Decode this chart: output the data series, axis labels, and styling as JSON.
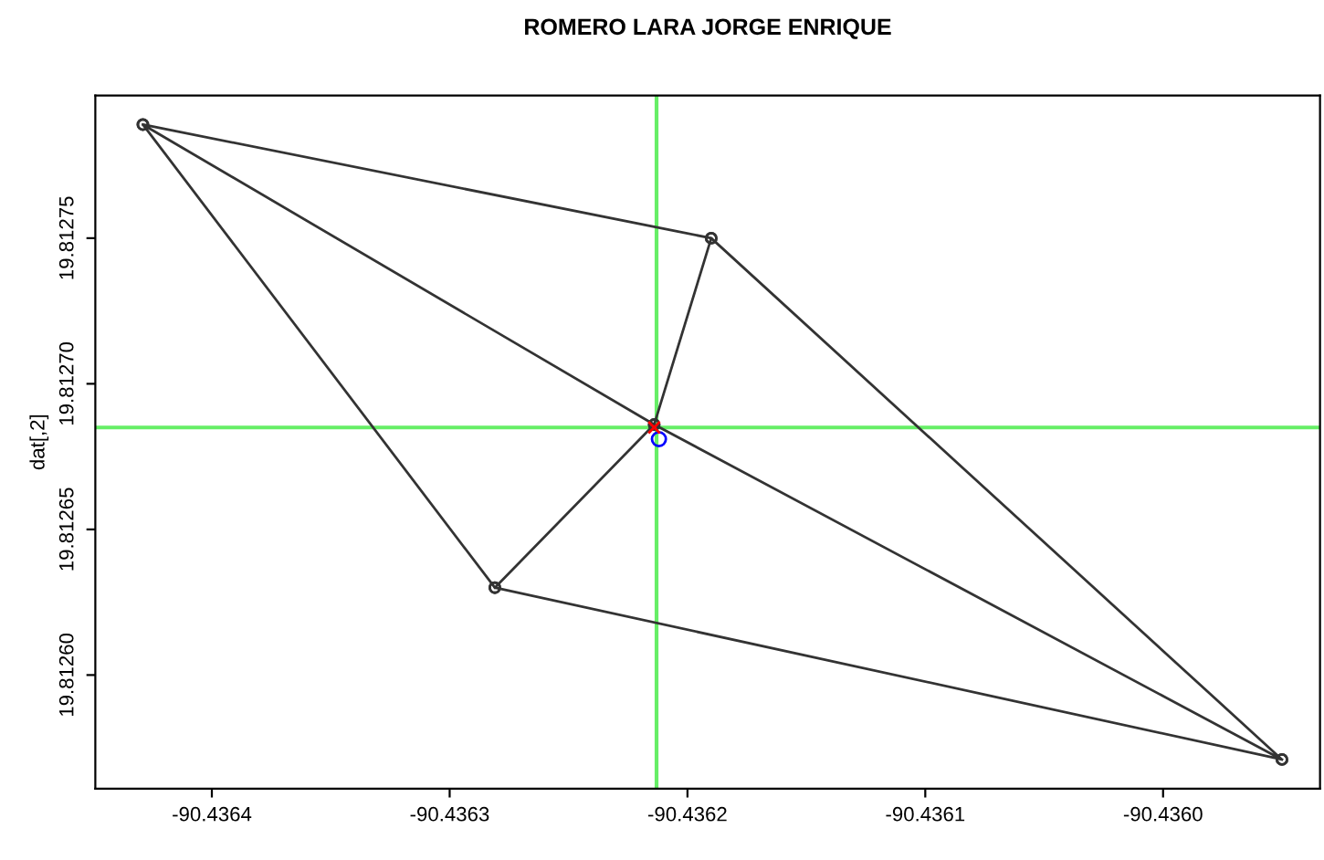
{
  "chart_data": {
    "type": "line",
    "title": "ROMERO LARA JORGE ENRIQUE",
    "ylabel": "dat[,2]",
    "series": [
      {
        "color": "#333333",
        "marker": "circle",
        "x": [
          -90.436429,
          -90.43619,
          -90.43595,
          -90.436281,
          -90.436429,
          -90.436214,
          -90.43595,
          null,
          -90.43619,
          -90.436214,
          -90.436281
        ],
        "values": [
          19.812789,
          19.81275,
          19.812571,
          19.81263,
          19.812789,
          19.812686,
          19.812571,
          null,
          19.81275,
          19.812686,
          19.81263
        ]
      },
      {
        "type": "scatter",
        "color": "#0000ff",
        "marker": "circle",
        "x": [
          -90.436212
        ],
        "values": [
          19.812681
        ]
      },
      {
        "type": "scatter",
        "color": "#ff0000",
        "marker": "cross",
        "x": [
          -90.436214
        ],
        "values": [
          19.812685
        ]
      }
    ],
    "ref_lines": [
      {
        "axis": "x",
        "value": -90.436213,
        "color": "#66ee66"
      },
      {
        "axis": "y",
        "value": 19.812685,
        "color": "#66ee66"
      }
    ],
    "xlim": [
      -90.436449,
      -90.435934
    ],
    "ylim": [
      19.812561,
      19.812799
    ],
    "xticks": [
      {
        "value": -90.4364,
        "label": "-90.4364"
      },
      {
        "value": -90.4363,
        "label": "-90.4363"
      },
      {
        "value": -90.4362,
        "label": "-90.4362"
      },
      {
        "value": -90.4361,
        "label": "-90.4361"
      },
      {
        "value": -90.436,
        "label": "-90.4360"
      }
    ],
    "yticks": [
      {
        "value": 19.8126,
        "label": "19.81260"
      },
      {
        "value": 19.81265,
        "label": "19.81265"
      },
      {
        "value": 19.8127,
        "label": "19.81270"
      },
      {
        "value": 19.81275,
        "label": "19.81275"
      }
    ],
    "grid": false,
    "legend": false
  }
}
